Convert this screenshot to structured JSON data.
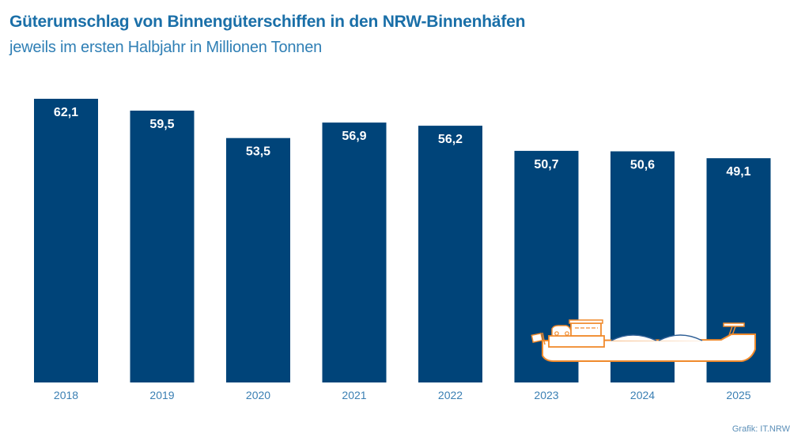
{
  "header": {
    "title": "Güterumschlag von Binnengüterschiffen in den NRW-Binnenhäfen",
    "subtitle": "jeweils im ersten Halbjahr in Millionen Tonnen"
  },
  "footer": {
    "source": "Grafik: IT.NRW"
  },
  "colors": {
    "bar": "#004479",
    "bar_label": "#ffffff",
    "axis_label": "#3a7fb3",
    "title": "#1a6fa8",
    "ship_outline": "#f08a2c",
    "ship_fill": "#ffffff",
    "cargo_outline": "#2d5e95"
  },
  "chart_data": {
    "type": "bar",
    "title": "Güterumschlag von Binnengüterschiffen in den NRW-Binnenhäfen",
    "subtitle": "jeweils im ersten Halbjahr in Millionen Tonnen",
    "xlabel": "",
    "ylabel": "Millionen Tonnen",
    "categories": [
      "2018",
      "2019",
      "2020",
      "2021",
      "2022",
      "2023",
      "2024",
      "2025"
    ],
    "values": [
      62.1,
      59.5,
      53.5,
      56.9,
      56.2,
      50.7,
      50.6,
      49.1
    ],
    "value_labels": [
      "62,1",
      "59,5",
      "53,5",
      "56,9",
      "56,2",
      "50,7",
      "50,6",
      "49,1"
    ],
    "ylim": [
      0,
      62.1
    ],
    "grid": false,
    "legend": "none",
    "decoration": "inland cargo ship illustration over the 2023–2025 bars"
  }
}
